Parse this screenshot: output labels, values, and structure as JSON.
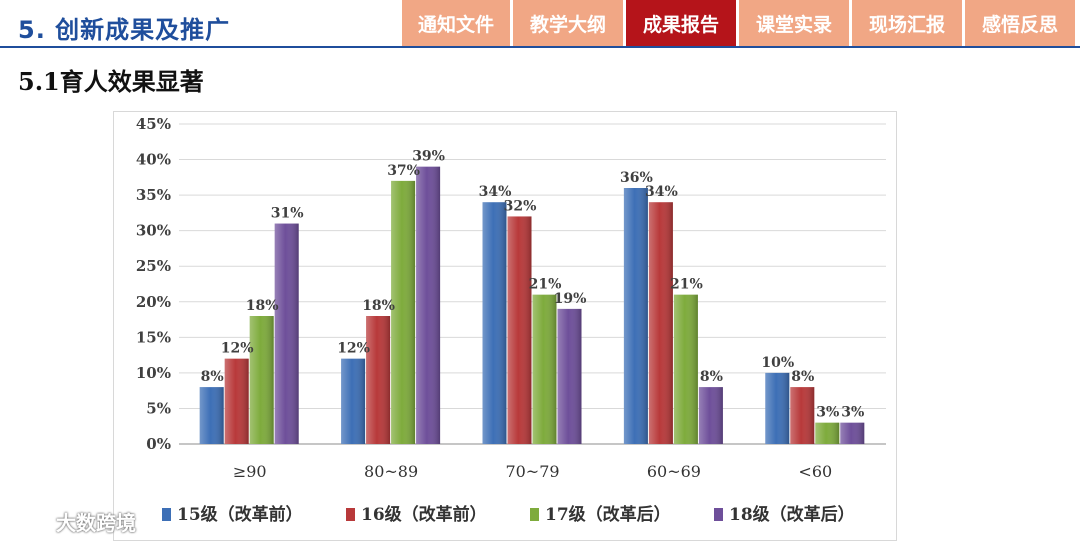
{
  "header": {
    "title": "5. 创新成果及推广"
  },
  "nav": {
    "tabs": [
      {
        "label": "通知文件",
        "active": false
      },
      {
        "label": "教学大纲",
        "active": false
      },
      {
        "label": "成果报告",
        "active": true
      },
      {
        "label": "课堂实录",
        "active": false
      },
      {
        "label": "现场汇报",
        "active": false
      },
      {
        "label": "感悟反思",
        "active": false
      }
    ]
  },
  "subtitle": "5.1育人效果显著",
  "watermark": {
    "text": "大数跨境"
  },
  "colors": {
    "brand_blue": "#1f4e9c",
    "tab_inactive": "#f1a785",
    "tab_active": "#b5141a"
  },
  "chart_data": {
    "type": "bar",
    "categories": [
      "≥90",
      "80~89",
      "70~79",
      "60~69",
      "<60"
    ],
    "series": [
      {
        "name": "15级（改革前）",
        "color": "#3d6fb6",
        "values": [
          8,
          12,
          34,
          36,
          10
        ]
      },
      {
        "name": "16级（改革前）",
        "color": "#b8393a",
        "values": [
          12,
          18,
          32,
          34,
          8
        ]
      },
      {
        "name": "17级（改革后）",
        "color": "#7eab3c",
        "values": [
          18,
          37,
          21,
          21,
          3
        ]
      },
      {
        "name": "18级（改革后）",
        "color": "#6e4f9a",
        "values": [
          31,
          39,
          19,
          8,
          3
        ]
      }
    ],
    "yticks": [
      "0%",
      "5%",
      "10%",
      "15%",
      "20%",
      "25%",
      "30%",
      "35%",
      "40%",
      "45%"
    ],
    "ylim": [
      0,
      45
    ],
    "value_suffix": "%",
    "grid": true,
    "legend_position": "bottom"
  }
}
